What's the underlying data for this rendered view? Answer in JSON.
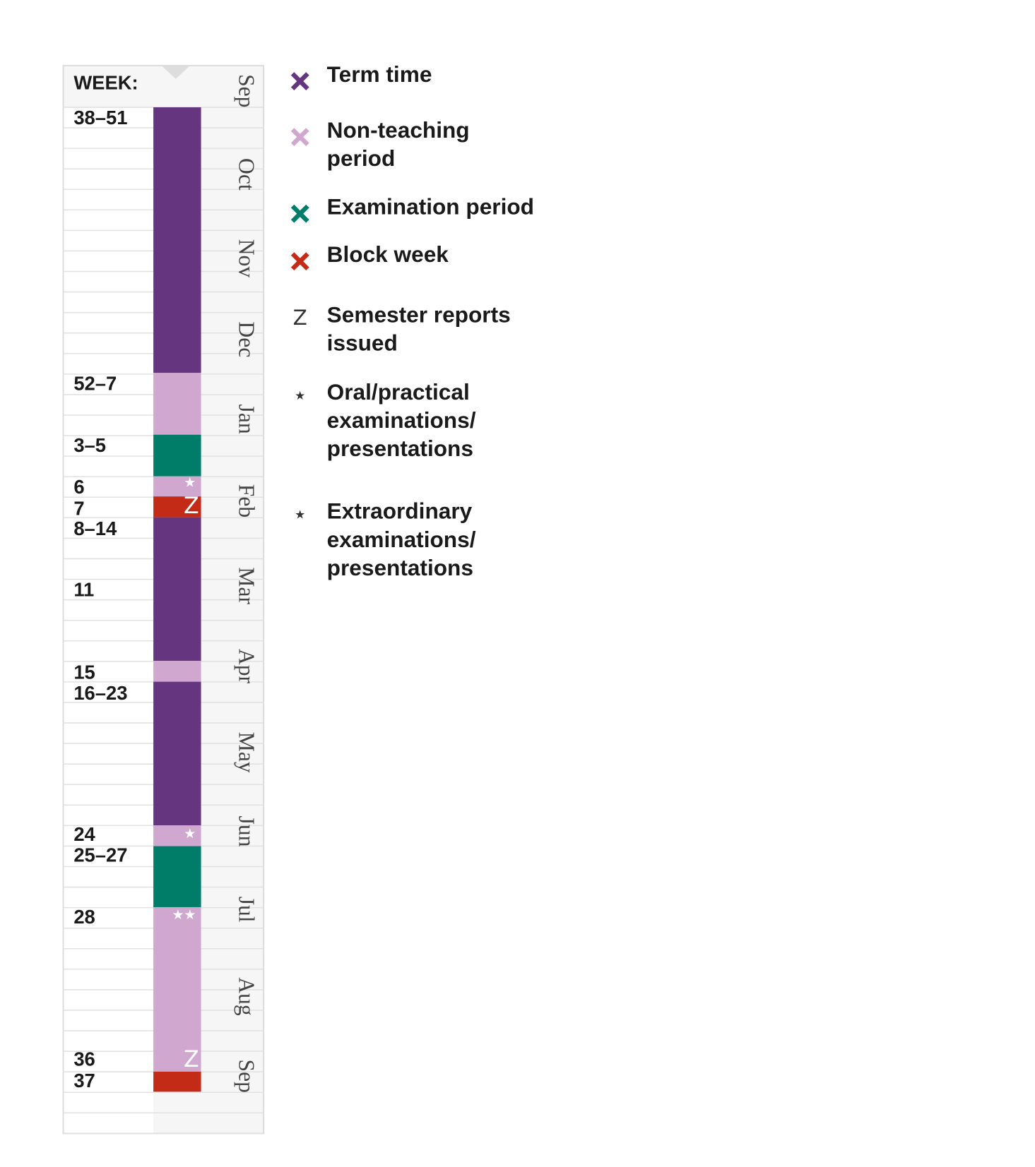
{
  "calendar": {
    "header": "WEEK:",
    "weeks": [
      "38–51",
      "52–7",
      "3–5",
      "6",
      "7",
      "8–14",
      "11",
      "15",
      "16–23",
      "24",
      "25–27",
      "28",
      "36",
      "37"
    ],
    "months": [
      "Sep",
      "Oct",
      "Nov",
      "Dec",
      "Jan",
      "Feb",
      "Mar",
      "Apr",
      "May",
      "Jun",
      "Jul",
      "Aug",
      "Sep"
    ],
    "markers": [
      "★",
      "Z",
      "★",
      "★★",
      "Z"
    ]
  },
  "legend": [
    {
      "color": "#66357f",
      "lines": [
        "Term time"
      ]
    },
    {
      "color": "#d0a8cf",
      "lines": [
        "Non-teaching",
        "period"
      ]
    },
    {
      "color": "#007d68",
      "lines": [
        "Examination period"
      ]
    },
    {
      "color": "#c32b17",
      "lines": [
        "Block week"
      ]
    },
    {
      "symbol": "Z",
      "lines": [
        "Semester reports",
        "issued"
      ]
    },
    {
      "symbol": "★",
      "lines": [
        "Oral/practical",
        "examinations/",
        "presentations"
      ]
    },
    {
      "symbol": "★",
      "lines": [
        "Extraordinary",
        "examinations/",
        "presentations"
      ]
    }
  ]
}
